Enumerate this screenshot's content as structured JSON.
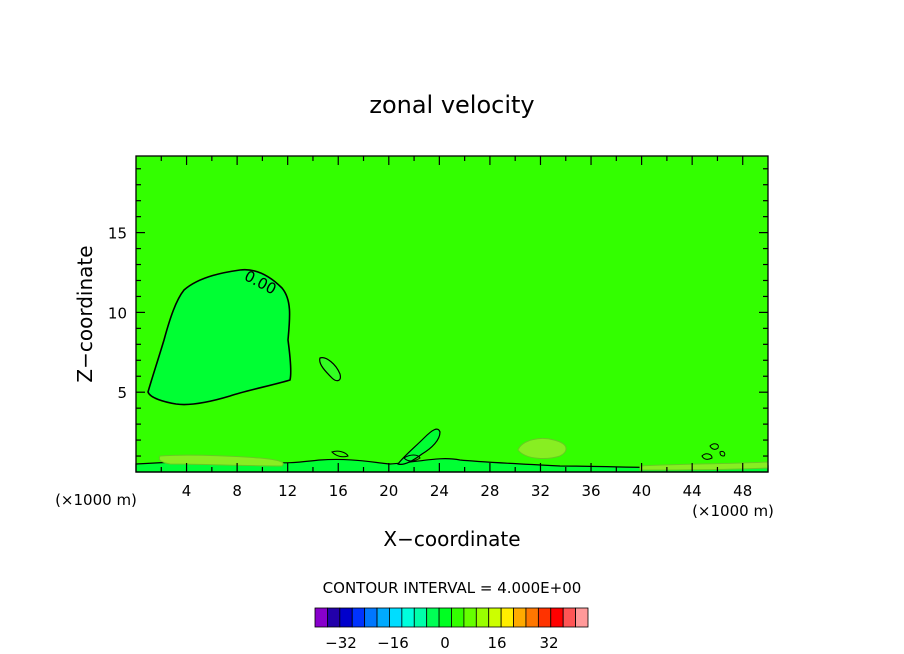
{
  "chart_data": {
    "type": "contour",
    "title": "zonal velocity",
    "xlabel": "X−coordinate",
    "ylabel": "Z−coordinate",
    "x_units": "(×1000 m)",
    "xlim": [
      0,
      50
    ],
    "ylim": [
      0,
      19.8
    ],
    "x_ticks": [
      4,
      8,
      12,
      16,
      20,
      24,
      28,
      32,
      36,
      40,
      44,
      48
    ],
    "y_ticks": [
      5,
      10,
      15
    ],
    "contour_label": "0.00",
    "contour_interval_text": "CONTOUR INTERVAL = 4.000E+00",
    "background_color": "#33ff00",
    "colorbar": {
      "min": -40,
      "max": 44,
      "step": 4,
      "tick_values": [
        -32,
        -16,
        0,
        16,
        32
      ],
      "tick_labels": [
        "−32",
        "−16",
        "0",
        "16",
        "32"
      ],
      "colors": [
        "#8800cc",
        "#2200aa",
        "#0000cc",
        "#0033ff",
        "#0077ff",
        "#00aaff",
        "#00ddff",
        "#00ffdd",
        "#00ffaa",
        "#00ff55",
        "#00ff22",
        "#33ff00",
        "#66ff00",
        "#99ff00",
        "#ccff00",
        "#ffee00",
        "#ffaa00",
        "#ff7700",
        "#ff3300",
        "#ff0000",
        "#ff5555",
        "#ff9999"
      ]
    },
    "regions": [
      {
        "name": "weak-negative-core",
        "color": "#00ff33",
        "level": "<0",
        "x_range": [
          1,
          12.4
        ],
        "z_range": [
          4.3,
          12.8
        ]
      },
      {
        "name": "small-blob",
        "color": "#33ff22",
        "x_range": [
          14.5,
          16.4
        ],
        "z_range": [
          5.5,
          7.3
        ]
      },
      {
        "name": "surface-layer",
        "color": "#00ff33",
        "z_range": [
          0,
          0.8
        ]
      },
      {
        "name": "positive-patch",
        "color": "#88ee22",
        "x_range": [
          29.5,
          34
        ],
        "z_range": [
          1,
          2.2
        ]
      }
    ]
  }
}
